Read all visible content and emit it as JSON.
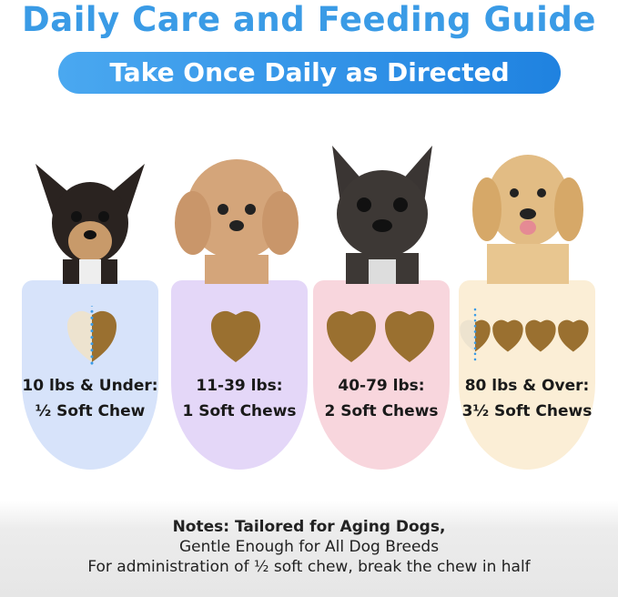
{
  "header": {
    "title": "Daily Care and Feeding Guide",
    "subtitle": "Take Once Daily as Directed"
  },
  "colors": {
    "title": "#3a9be6",
    "pill": "#1f82e0",
    "chew": "#9a7030",
    "card_colors": [
      "#d7e3fa",
      "#e4d7f8",
      "#f8d6dd",
      "#fbeed6"
    ]
  },
  "doses": [
    {
      "weight": "10 lbs & Under:",
      "amount": "½ Soft Chew",
      "dog": "chihuahua"
    },
    {
      "weight": "11-39 lbs:",
      "amount": "1 Soft Chews",
      "dog": "poodle"
    },
    {
      "weight": "40-79 lbs:",
      "amount": "2 Soft Chews",
      "dog": "french-bulldog"
    },
    {
      "weight": "80 lbs & Over:",
      "amount": "3½ Soft Chews",
      "dog": "golden-retriever"
    }
  ],
  "notes": {
    "line1": "Notes: Tailored for Aging Dogs,",
    "line2": "Gentle Enough for All Dog Breeds",
    "line3": "For administration of ½ soft chew, break the chew in half"
  }
}
